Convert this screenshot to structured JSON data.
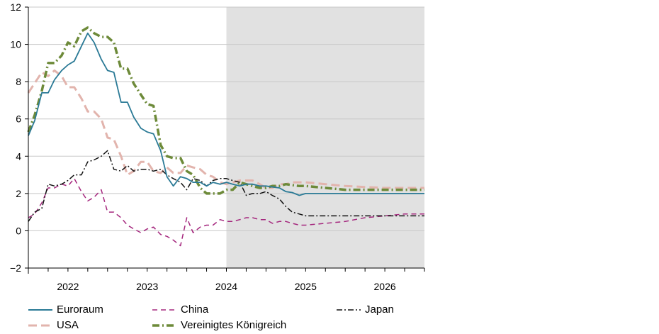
{
  "chart_data": {
    "type": "line",
    "title": "",
    "xlabel": "",
    "ylabel": "",
    "xlim": [
      2021.5,
      2026.5
    ],
    "ylim": [
      -2,
      12
    ],
    "yticks": [
      -2,
      0,
      2,
      4,
      6,
      8,
      10,
      12
    ],
    "xtick_labels": [
      "2022",
      "2023",
      "2024",
      "2025",
      "2026"
    ],
    "xtick_label_positions": [
      2022.0,
      2023.0,
      2024.0,
      2025.0,
      2026.0
    ],
    "grid": "horizontal",
    "projection_shading": {
      "from": 2024.0,
      "to": 2026.5,
      "color": "#e1e1e1"
    },
    "legend_placement": "bottom",
    "series": [
      {
        "name": "Euroraum",
        "color": "#2b7a96",
        "style": "solid",
        "points": [
          [
            2021.5,
            5.1
          ],
          [
            2021.58,
            5.9
          ],
          [
            2021.67,
            7.4
          ],
          [
            2021.75,
            7.4
          ],
          [
            2021.83,
            8.1
          ],
          [
            2021.92,
            8.6
          ],
          [
            2022.0,
            8.9
          ],
          [
            2022.08,
            9.1
          ],
          [
            2022.17,
            9.9
          ],
          [
            2022.25,
            10.6
          ],
          [
            2022.33,
            10.1
          ],
          [
            2022.42,
            9.2
          ],
          [
            2022.5,
            8.6
          ],
          [
            2022.58,
            8.5
          ],
          [
            2022.67,
            6.9
          ],
          [
            2022.75,
            6.9
          ],
          [
            2022.83,
            6.1
          ],
          [
            2022.92,
            5.5
          ],
          [
            2023.0,
            5.3
          ],
          [
            2023.08,
            5.2
          ],
          [
            2023.17,
            4.3
          ],
          [
            2023.25,
            2.9
          ],
          [
            2023.33,
            2.4
          ],
          [
            2023.42,
            2.9
          ],
          [
            2023.5,
            2.8
          ],
          [
            2023.58,
            2.6
          ],
          [
            2023.67,
            2.6
          ],
          [
            2023.75,
            2.4
          ],
          [
            2023.83,
            2.6
          ],
          [
            2023.92,
            2.5
          ],
          [
            2024.0,
            2.6
          ],
          [
            2024.08,
            2.5
          ],
          [
            2024.17,
            2.4
          ],
          [
            2024.25,
            2.5
          ],
          [
            2024.33,
            2.5
          ],
          [
            2024.42,
            2.4
          ],
          [
            2024.5,
            2.4
          ],
          [
            2024.58,
            2.35
          ],
          [
            2024.67,
            2.3
          ],
          [
            2024.75,
            2.1
          ],
          [
            2024.83,
            2.05
          ],
          [
            2024.92,
            1.9
          ],
          [
            2025.0,
            2.0
          ],
          [
            2025.17,
            2.0
          ],
          [
            2025.5,
            2.0
          ],
          [
            2026.0,
            2.0
          ],
          [
            2026.5,
            2.0
          ]
        ]
      },
      {
        "name": "USA",
        "color": "#e2b4ad",
        "style": "dashed",
        "points": [
          [
            2021.5,
            7.4
          ],
          [
            2021.67,
            8.5
          ],
          [
            2021.75,
            8.3
          ],
          [
            2021.83,
            8.6
          ],
          [
            2021.92,
            8.3
          ],
          [
            2022.0,
            7.7
          ],
          [
            2022.08,
            7.7
          ],
          [
            2022.17,
            7.1
          ],
          [
            2022.25,
            6.4
          ],
          [
            2022.33,
            6.4
          ],
          [
            2022.42,
            6.0
          ],
          [
            2022.5,
            5.0
          ],
          [
            2022.58,
            4.9
          ],
          [
            2022.67,
            4.0
          ],
          [
            2022.75,
            3.0
          ],
          [
            2022.83,
            3.2
          ],
          [
            2022.92,
            3.7
          ],
          [
            2023.0,
            3.7
          ],
          [
            2023.08,
            3.2
          ],
          [
            2023.17,
            3.1
          ],
          [
            2023.25,
            3.4
          ],
          [
            2023.33,
            3.1
          ],
          [
            2023.42,
            3.1
          ],
          [
            2023.5,
            3.5
          ],
          [
            2023.58,
            3.4
          ],
          [
            2023.67,
            3.3
          ],
          [
            2023.75,
            3.0
          ],
          [
            2023.83,
            2.9
          ],
          [
            2023.92,
            2.6
          ],
          [
            2024.0,
            2.5
          ],
          [
            2024.08,
            2.6
          ],
          [
            2024.17,
            2.7
          ],
          [
            2024.25,
            2.7
          ],
          [
            2024.33,
            2.7
          ],
          [
            2024.42,
            2.5
          ],
          [
            2024.5,
            2.3
          ],
          [
            2024.58,
            2.3
          ],
          [
            2024.67,
            2.5
          ],
          [
            2024.75,
            2.5
          ],
          [
            2024.83,
            2.6
          ],
          [
            2024.92,
            2.6
          ],
          [
            2025.0,
            2.6
          ],
          [
            2025.25,
            2.5
          ],
          [
            2025.5,
            2.4
          ],
          [
            2025.75,
            2.35
          ],
          [
            2026.0,
            2.3
          ],
          [
            2026.25,
            2.3
          ],
          [
            2026.5,
            2.3
          ]
        ]
      },
      {
        "name": "China",
        "color": "#a5287e",
        "style": "dashed",
        "points": [
          [
            2021.5,
            0.7
          ],
          [
            2021.58,
            0.9
          ],
          [
            2021.67,
            1.5
          ],
          [
            2021.75,
            2.3
          ],
          [
            2021.83,
            2.3
          ],
          [
            2021.92,
            2.5
          ],
          [
            2022.0,
            2.4
          ],
          [
            2022.08,
            2.8
          ],
          [
            2022.17,
            2.1
          ],
          [
            2022.25,
            1.6
          ],
          [
            2022.33,
            1.8
          ],
          [
            2022.42,
            2.2
          ],
          [
            2022.5,
            1.0
          ],
          [
            2022.58,
            1.0
          ],
          [
            2022.67,
            0.7
          ],
          [
            2022.75,
            0.3
          ],
          [
            2022.83,
            0.1
          ],
          [
            2022.92,
            -0.1
          ],
          [
            2023.0,
            0.1
          ],
          [
            2023.08,
            0.2
          ],
          [
            2023.17,
            -0.2
          ],
          [
            2023.25,
            -0.3
          ],
          [
            2023.33,
            -0.5
          ],
          [
            2023.42,
            -0.8
          ],
          [
            2023.5,
            0.7
          ],
          [
            2023.58,
            -0.1
          ],
          [
            2023.67,
            0.2
          ],
          [
            2023.75,
            0.3
          ],
          [
            2023.83,
            0.3
          ],
          [
            2023.92,
            0.6
          ],
          [
            2024.0,
            0.5
          ],
          [
            2024.08,
            0.5
          ],
          [
            2024.17,
            0.6
          ],
          [
            2024.25,
            0.7
          ],
          [
            2024.33,
            0.7
          ],
          [
            2024.42,
            0.6
          ],
          [
            2024.5,
            0.6
          ],
          [
            2024.58,
            0.4
          ],
          [
            2024.67,
            0.5
          ],
          [
            2024.75,
            0.5
          ],
          [
            2024.83,
            0.4
          ],
          [
            2024.92,
            0.3
          ],
          [
            2025.0,
            0.3
          ],
          [
            2025.25,
            0.4
          ],
          [
            2025.5,
            0.5
          ],
          [
            2025.75,
            0.7
          ],
          [
            2026.0,
            0.8
          ],
          [
            2026.25,
            0.9
          ],
          [
            2026.5,
            0.9
          ]
        ]
      },
      {
        "name": "Vereinigtes Königreich",
        "color": "#6d8a39",
        "style": "dashdot",
        "points": [
          [
            2021.5,
            5.3
          ],
          [
            2021.58,
            6.2
          ],
          [
            2021.67,
            7.5
          ],
          [
            2021.75,
            9.0
          ],
          [
            2021.83,
            9.0
          ],
          [
            2021.92,
            9.4
          ],
          [
            2022.0,
            10.1
          ],
          [
            2022.08,
            9.9
          ],
          [
            2022.17,
            10.7
          ],
          [
            2022.25,
            10.9
          ],
          [
            2022.33,
            10.6
          ],
          [
            2022.42,
            10.4
          ],
          [
            2022.5,
            10.4
          ],
          [
            2022.58,
            10.1
          ],
          [
            2022.67,
            8.7
          ],
          [
            2022.75,
            8.7
          ],
          [
            2022.83,
            7.9
          ],
          [
            2022.92,
            7.3
          ],
          [
            2023.0,
            6.8
          ],
          [
            2023.08,
            6.7
          ],
          [
            2023.17,
            4.6
          ],
          [
            2023.25,
            4.0
          ],
          [
            2023.33,
            3.9
          ],
          [
            2023.42,
            3.9
          ],
          [
            2023.5,
            3.2
          ],
          [
            2023.58,
            3.0
          ],
          [
            2023.67,
            2.3
          ],
          [
            2023.75,
            2.0
          ],
          [
            2023.83,
            2.0
          ],
          [
            2023.92,
            2.0
          ],
          [
            2024.0,
            2.2
          ],
          [
            2024.08,
            2.2
          ],
          [
            2024.17,
            2.6
          ],
          [
            2024.25,
            2.5
          ],
          [
            2024.33,
            2.4
          ],
          [
            2024.42,
            2.3
          ],
          [
            2024.5,
            2.3
          ],
          [
            2024.58,
            2.4
          ],
          [
            2024.67,
            2.4
          ],
          [
            2024.75,
            2.5
          ],
          [
            2024.83,
            2.45
          ],
          [
            2024.92,
            2.4
          ],
          [
            2025.0,
            2.4
          ],
          [
            2025.25,
            2.3
          ],
          [
            2025.5,
            2.2
          ],
          [
            2025.75,
            2.2
          ],
          [
            2026.0,
            2.2
          ],
          [
            2026.25,
            2.2
          ],
          [
            2026.5,
            2.2
          ]
        ]
      },
      {
        "name": "Japan",
        "color": "#111111",
        "style": "dashdot",
        "points": [
          [
            2021.5,
            0.5
          ],
          [
            2021.58,
            1.0
          ],
          [
            2021.67,
            1.2
          ],
          [
            2021.75,
            2.5
          ],
          [
            2021.83,
            2.4
          ],
          [
            2021.92,
            2.5
          ],
          [
            2022.0,
            2.7
          ],
          [
            2022.08,
            3.0
          ],
          [
            2022.17,
            3.0
          ],
          [
            2022.25,
            3.7
          ],
          [
            2022.33,
            3.8
          ],
          [
            2022.42,
            4.0
          ],
          [
            2022.5,
            4.3
          ],
          [
            2022.58,
            3.3
          ],
          [
            2022.67,
            3.2
          ],
          [
            2022.75,
            3.5
          ],
          [
            2022.83,
            3.2
          ],
          [
            2022.92,
            3.3
          ],
          [
            2023.0,
            3.3
          ],
          [
            2023.08,
            3.2
          ],
          [
            2023.17,
            3.3
          ],
          [
            2023.25,
            3.0
          ],
          [
            2023.33,
            2.8
          ],
          [
            2023.42,
            2.6
          ],
          [
            2023.5,
            2.2
          ],
          [
            2023.58,
            2.8
          ],
          [
            2023.67,
            2.7
          ],
          [
            2023.75,
            2.4
          ],
          [
            2023.83,
            2.7
          ],
          [
            2023.92,
            2.8
          ],
          [
            2024.0,
            2.8
          ],
          [
            2024.08,
            2.7
          ],
          [
            2024.17,
            2.6
          ],
          [
            2024.25,
            1.9
          ],
          [
            2024.33,
            2.0
          ],
          [
            2024.42,
            2.0
          ],
          [
            2024.5,
            2.1
          ],
          [
            2024.58,
            1.9
          ],
          [
            2024.67,
            1.7
          ],
          [
            2024.75,
            1.3
          ],
          [
            2024.83,
            1.0
          ],
          [
            2024.92,
            0.9
          ],
          [
            2025.0,
            0.8
          ],
          [
            2025.25,
            0.8
          ],
          [
            2025.5,
            0.8
          ],
          [
            2025.75,
            0.8
          ],
          [
            2026.0,
            0.8
          ],
          [
            2026.25,
            0.8
          ],
          [
            2026.5,
            0.8
          ]
        ]
      }
    ]
  },
  "legend": [
    {
      "name": "Euroraum",
      "color": "#2b7a96",
      "style": "solid"
    },
    {
      "name": "USA",
      "color": "#e2b4ad",
      "style": "dashed"
    },
    {
      "name": "China",
      "color": "#a5287e",
      "style": "dashed"
    },
    {
      "name": "Vereinigtes Königreich",
      "color": "#6d8a39",
      "style": "dashdot"
    },
    {
      "name": "Japan",
      "color": "#111111",
      "style": "dashdot"
    }
  ]
}
